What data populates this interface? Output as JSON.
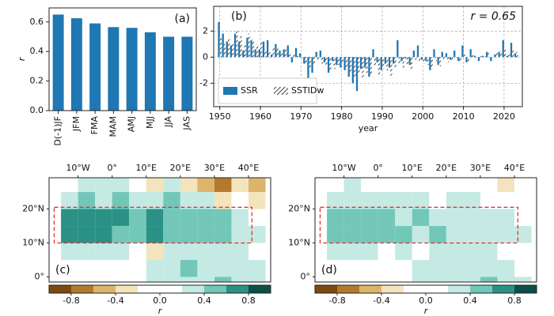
{
  "chart_data": [
    {
      "type": "bar",
      "label": "(a)",
      "ylabel": "r",
      "categories": [
        "D(-1)JF",
        "JFM",
        "FMA",
        "MAM",
        "AMJ",
        "MJJ",
        "JJA",
        "JAS"
      ],
      "values": [
        0.65,
        0.625,
        0.59,
        0.565,
        0.56,
        0.53,
        0.5,
        0.5
      ],
      "color": "#1f77b4",
      "ylim": [
        0,
        0.695
      ],
      "yticks": [
        {
          "value": 0,
          "label": "0.0"
        },
        0.2,
        0.4,
        0.6
      ]
    },
    {
      "type": "grouped_bar",
      "label": "(b)",
      "annotation": "r = 0.65",
      "xlabel": "year",
      "x": [
        1950,
        1951,
        1952,
        1953,
        1954,
        1955,
        1956,
        1957,
        1958,
        1959,
        1960,
        1961,
        1962,
        1963,
        1964,
        1965,
        1966,
        1967,
        1968,
        1969,
        1970,
        1971,
        1972,
        1973,
        1974,
        1975,
        1976,
        1977,
        1978,
        1979,
        1980,
        1981,
        1982,
        1983,
        1984,
        1985,
        1986,
        1987,
        1988,
        1989,
        1990,
        1991,
        1992,
        1993,
        1994,
        1995,
        1996,
        1997,
        1998,
        1999,
        2000,
        2001,
        2002,
        2003,
        2004,
        2005,
        2006,
        2007,
        2008,
        2009,
        2010,
        2011,
        2012,
        2013,
        2014,
        2015,
        2016,
        2017,
        2018,
        2019,
        2020,
        2021,
        2022,
        2023
      ],
      "series": [
        {
          "name": "SSR",
          "color": "#1f77b4",
          "hatch": false,
          "values": [
            2.7,
            1.8,
            1.2,
            0.9,
            1.8,
            1.2,
            0.5,
            1.5,
            1.3,
            0.6,
            0.6,
            1.2,
            1.3,
            0.2,
            1.0,
            0.5,
            0.6,
            0.9,
            -0.4,
            0.7,
            0.3,
            -0.5,
            -1.9,
            -1.2,
            0.4,
            0.5,
            -0.4,
            -1.2,
            -0.3,
            -0.6,
            -0.8,
            -1.0,
            -1.5,
            -2.0,
            -2.6,
            -0.9,
            -0.8,
            -1.5,
            0.6,
            -0.4,
            -1.0,
            -0.5,
            -0.8,
            -0.5,
            1.3,
            -0.3,
            -0.1,
            -0.6,
            0.5,
            0.9,
            -0.2,
            -0.3,
            -1.0,
            0.6,
            -0.6,
            0.4,
            0.3,
            -0.2,
            0.5,
            -0.3,
            0.9,
            -0.4,
            0.6,
            0.1,
            -0.3,
            0.1,
            0.4,
            -0.3,
            0.2,
            0.4,
            1.3,
            0.1,
            1.1,
            0.3
          ]
        },
        {
          "name": "SSTIDw",
          "color": "#111111",
          "hatch": true,
          "values": [
            1.5,
            1.0,
            1.5,
            1.0,
            2.0,
            1.6,
            1.0,
            1.8,
            1.4,
            1.0,
            1.2,
            0.6,
            0.5,
            0.7,
            0.8,
            0.4,
            0.6,
            0.3,
            0.2,
            0.1,
            -0.1,
            -0.5,
            -0.8,
            -0.6,
            -0.3,
            -0.5,
            -0.6,
            -1.0,
            -0.9,
            -0.6,
            -0.5,
            -0.8,
            -1.2,
            -1.5,
            -1.3,
            -1.6,
            -1.2,
            -1.4,
            -0.7,
            -1.4,
            -0.9,
            -1.0,
            -1.6,
            -0.9,
            -0.6,
            -0.8,
            -0.7,
            -1.0,
            -0.2,
            -0.4,
            -0.5,
            -0.6,
            -0.9,
            -0.3,
            -0.7,
            -0.2,
            -0.4,
            -0.3,
            -0.1,
            -0.4,
            0.2,
            -0.3,
            0.3,
            -0.1,
            0.1,
            0.2,
            0.3,
            0.1,
            0.4,
            0.5,
            0.6,
            0.4,
            0.5,
            0.4
          ]
        }
      ],
      "xlim": [
        1948.5,
        2024.5
      ],
      "ylim": [
        -3.8,
        3.9
      ],
      "xticks": [
        1950,
        1960,
        1970,
        1980,
        1990,
        2000,
        2010,
        2020
      ],
      "yticks": [
        -2,
        0,
        2
      ],
      "grid": true,
      "legend": "lower left"
    },
    {
      "type": "heatmap",
      "label": "(c)",
      "lon": [
        -20,
        -15,
        -10,
        -5,
        0,
        5,
        10,
        15,
        20,
        25,
        30,
        35,
        40
      ],
      "lat": [
        25,
        20,
        15,
        10,
        5,
        0,
        -5
      ],
      "values": [
        [
          null,
          0.1,
          0.2,
          0.3,
          0.2,
          0.0,
          -0.3,
          0.2,
          -0.3,
          -0.5,
          -0.7,
          -0.4,
          -0.5
        ],
        [
          null,
          0.3,
          0.4,
          0.3,
          0.4,
          0.3,
          0.3,
          0.4,
          0.3,
          0.2,
          -0.3,
          -0.2,
          -0.4
        ],
        [
          null,
          0.6,
          0.7,
          0.6,
          0.6,
          0.5,
          0.6,
          0.5,
          0.5,
          0.4,
          0.4,
          0.3,
          0.1
        ],
        [
          null,
          0.6,
          0.6,
          0.6,
          0.5,
          0.5,
          0.6,
          0.5,
          0.5,
          0.5,
          0.4,
          0.3,
          0.2
        ],
        [
          null,
          0.3,
          0.2,
          0.3,
          0.2,
          0.1,
          -0.3,
          0.2,
          0.3,
          0.3,
          0.3,
          0.2,
          0.1
        ],
        [
          null,
          null,
          null,
          null,
          null,
          null,
          0.3,
          0.2,
          0.4,
          0.3,
          0.2,
          0.3,
          0.2
        ],
        [
          null,
          null,
          null,
          null,
          null,
          null,
          0.2,
          0.3,
          0.2,
          0.3,
          0.5,
          0.3,
          0.2
        ]
      ],
      "xlim": [
        -18.5,
        46.5
      ],
      "ylim": [
        -1.5,
        29.2
      ],
      "xticks": [
        {
          "value": -10,
          "label": "10°W"
        },
        {
          "value": 0,
          "label": "0°"
        },
        {
          "value": 10,
          "label": "10°E"
        },
        {
          "value": 20,
          "label": "20°E"
        },
        {
          "value": 30,
          "label": "30°E"
        },
        {
          "value": 40,
          "label": "40°E"
        }
      ],
      "yticks": [
        {
          "value": 20,
          "label": "20°N"
        },
        {
          "value": 10,
          "label": "10°N"
        },
        {
          "value": 0,
          "label": "0°"
        }
      ],
      "region": {
        "lon": [
          -17,
          41
        ],
        "lat": [
          10,
          20.5
        ],
        "color": "#e8202a"
      },
      "colorbar": {
        "label": "r",
        "bounds": [
          -1,
          -0.8,
          -0.6,
          -0.4,
          -0.2,
          0,
          0.2,
          0.4,
          0.6,
          0.8,
          1
        ],
        "colors": [
          "#7a4a0f",
          "#b47a2c",
          "#dcb46a",
          "#f3e4bd",
          "#ffffff",
          "#ffffff",
          "#c4eae3",
          "#72c7b9",
          "#2b9186",
          "#0b4f47"
        ],
        "ticks": [
          -0.8,
          -0.4,
          {
            "value": 0,
            "label": "0.0"
          },
          0.4,
          0.8
        ]
      }
    },
    {
      "type": "heatmap",
      "label": "(d)",
      "lon": [
        -20,
        -15,
        -10,
        -5,
        0,
        5,
        10,
        15,
        20,
        25,
        30,
        35,
        40
      ],
      "lat": [
        25,
        20,
        15,
        10,
        5,
        0,
        -5
      ],
      "values": [
        [
          null,
          0.1,
          0.2,
          0.1,
          0.0,
          -0.1,
          0.0,
          0.1,
          0.0,
          -0.1,
          -0.2,
          -0.3,
          -0.2
        ],
        [
          null,
          0.3,
          0.3,
          0.2,
          0.2,
          0.3,
          0.2,
          0.1,
          0.3,
          0.2,
          0.0,
          -0.1,
          -0.2
        ],
        [
          null,
          0.5,
          0.5,
          0.5,
          0.4,
          0.3,
          0.4,
          0.3,
          0.3,
          0.3,
          0.2,
          0.2,
          0.1
        ],
        [
          null,
          0.5,
          0.4,
          0.4,
          0.4,
          0.4,
          0.3,
          0.4,
          0.3,
          0.3,
          0.3,
          0.2,
          0.2
        ],
        [
          null,
          0.3,
          0.2,
          0.2,
          0.1,
          0.2,
          0.1,
          0.3,
          0.2,
          0.3,
          0.2,
          0.1,
          0.0
        ],
        [
          null,
          null,
          null,
          null,
          null,
          null,
          0.2,
          0.3,
          0.2,
          0.3,
          0.3,
          0.2,
          0.1
        ],
        [
          null,
          null,
          null,
          null,
          null,
          null,
          0.2,
          0.2,
          0.3,
          0.3,
          0.4,
          0.3,
          0.2
        ]
      ],
      "xlim": [
        -18.5,
        46.5
      ],
      "ylim": [
        -1.5,
        29.2
      ],
      "xticks": [
        {
          "value": -10,
          "label": "10°W"
        },
        {
          "value": 0,
          "label": "0°"
        },
        {
          "value": 10,
          "label": "10°E"
        },
        {
          "value": 20,
          "label": "20°E"
        },
        {
          "value": 30,
          "label": "30°E"
        },
        {
          "value": 40,
          "label": "40°E"
        }
      ],
      "yticks": [
        {
          "value": 20,
          "label": "20°N"
        },
        {
          "value": 10,
          "label": "10°N"
        },
        {
          "value": 0,
          "label": "0°"
        }
      ],
      "region": {
        "lon": [
          -17,
          41
        ],
        "lat": [
          10,
          20.5
        ],
        "color": "#e8202a"
      },
      "colorbar": {
        "label": "r",
        "bounds": [
          -1,
          -0.8,
          -0.6,
          -0.4,
          -0.2,
          0,
          0.2,
          0.4,
          0.6,
          0.8,
          1
        ],
        "colors": [
          "#7a4a0f",
          "#b47a2c",
          "#dcb46a",
          "#f3e4bd",
          "#ffffff",
          "#ffffff",
          "#c4eae3",
          "#72c7b9",
          "#2b9186",
          "#0b4f47"
        ],
        "ticks": [
          -0.8,
          -0.4,
          {
            "value": 0,
            "label": "0.0"
          },
          0.4,
          0.8
        ]
      }
    }
  ]
}
